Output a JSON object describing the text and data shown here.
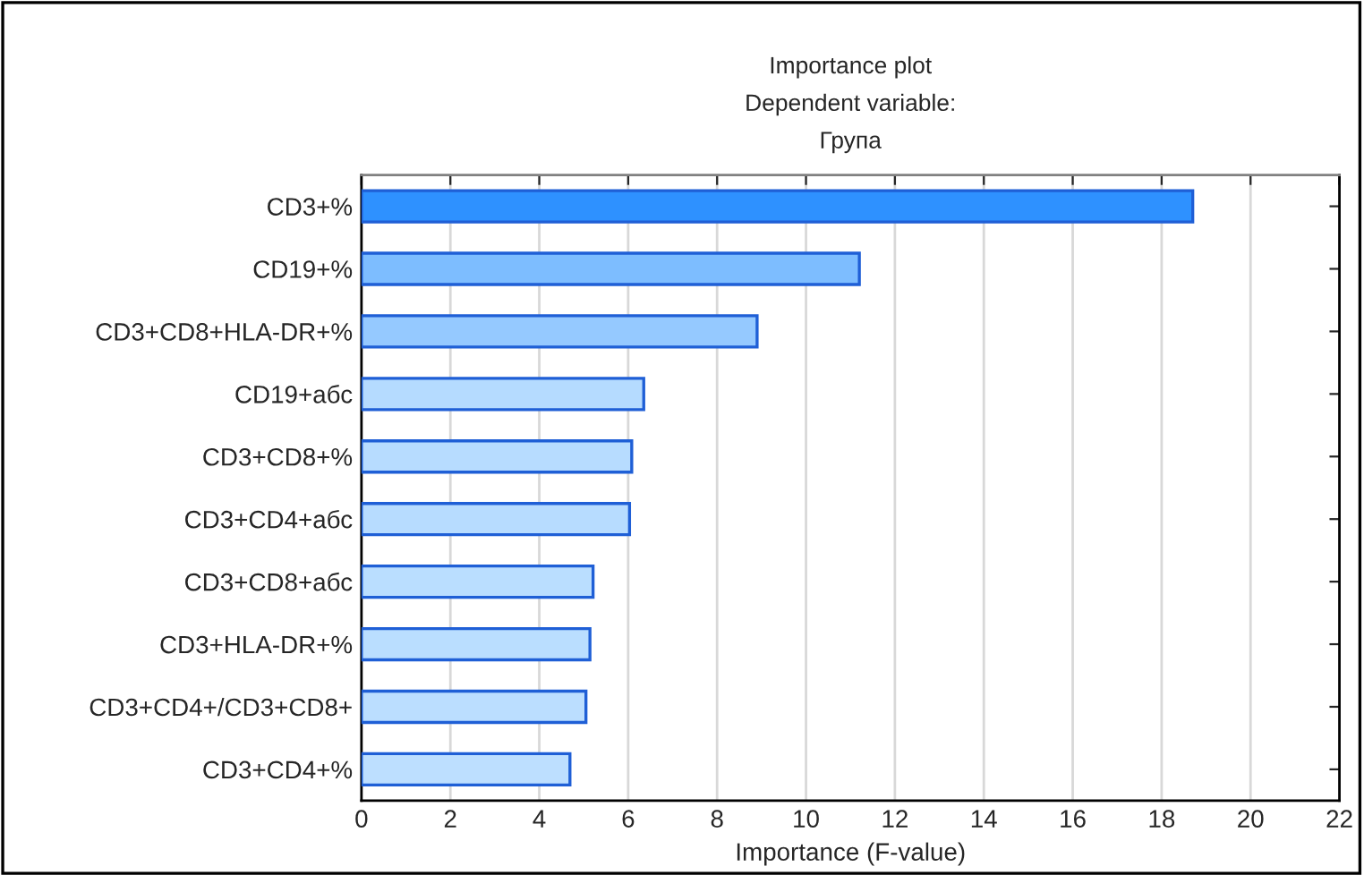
{
  "chart_data": {
    "type": "bar",
    "orientation": "horizontal",
    "title": "Importance plot\nDependent variable:\nГрупа",
    "xlabel": "Importance (F-value)",
    "categories": [
      "CD3+%",
      "CD19+%",
      "CD3+CD8+HLA-DR+%",
      "CD19+абс",
      "CD3+CD8+%",
      "CD3+CD4+абс",
      "CD3+CD8+абс",
      "CD3+HLA-DR+%",
      "CD3+CD4+/CD3+CD8+",
      "CD3+CD4+%"
    ],
    "values": [
      18.7,
      11.2,
      8.9,
      6.35,
      6.08,
      6.03,
      5.21,
      5.14,
      5.05,
      4.69
    ],
    "colors": [
      "#2e91ff",
      "#7dbdff",
      "#95c9ff",
      "#b5dbff",
      "#b7dcff",
      "#b7dcff",
      "#badeff",
      "#badeff",
      "#bbdeff",
      "#bddfff"
    ],
    "xlim": [
      0,
      22
    ],
    "xticks": [
      0,
      2,
      4,
      6,
      8,
      10,
      12,
      14,
      16,
      18,
      20,
      22
    ],
    "grid": "x"
  }
}
